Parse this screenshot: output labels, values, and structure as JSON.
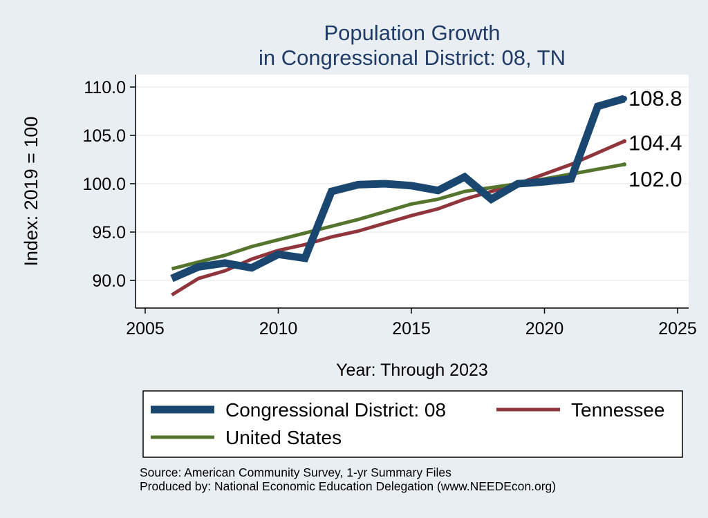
{
  "colors": {
    "background": "#e9eef3",
    "plot_background": "#ffffff",
    "title": "#1f3b66",
    "grid": "#e6e9ee",
    "axis": "#000000",
    "text": "#000000"
  },
  "chart_data": {
    "type": "line",
    "title": "Population Growth",
    "subtitle": "in Congressional District: 08, TN",
    "xlabel": "Year: Through 2023",
    "ylabel": "Index: 2019 = 100",
    "xlim": [
      2005,
      2025
    ],
    "ylim": [
      88.5,
      110.5
    ],
    "x_ticks": [
      2005,
      2010,
      2015,
      2020,
      2025
    ],
    "x_tick_labels": [
      "2005",
      "2010",
      "2015",
      "2020",
      "2025"
    ],
    "y_ticks": [
      90,
      95,
      100,
      105,
      110
    ],
    "y_tick_labels": [
      "90.0",
      "95.0",
      "100.0",
      "105.0",
      "110.0"
    ],
    "grid": true,
    "legend_position": "bottom",
    "x": [
      2006,
      2007,
      2008,
      2009,
      2010,
      2011,
      2012,
      2013,
      2014,
      2015,
      2016,
      2017,
      2018,
      2019,
      2020,
      2021,
      2022,
      2023
    ],
    "series": [
      {
        "name": "Congressional District: 08",
        "color": "#1a476f",
        "values": [
          90.2,
          91.4,
          91.8,
          91.3,
          92.7,
          92.3,
          99.2,
          99.9,
          100.0,
          99.8,
          99.3,
          100.7,
          98.4,
          100.0,
          100.2,
          100.5,
          108.0,
          108.8
        ],
        "end_label": "108.8"
      },
      {
        "name": "Tennessee",
        "color": "#90353b",
        "values": [
          88.5,
          90.2,
          91.0,
          92.2,
          93.1,
          93.7,
          94.5,
          95.1,
          95.9,
          96.7,
          97.4,
          98.4,
          99.2,
          100.0,
          101.0,
          102.0,
          103.2,
          104.4
        ],
        "end_label": "104.4"
      },
      {
        "name": "United States",
        "color": "#55752f",
        "values": [
          91.2,
          91.9,
          92.6,
          93.5,
          94.2,
          94.9,
          95.6,
          96.3,
          97.1,
          97.9,
          98.4,
          99.2,
          99.6,
          100.0,
          100.5,
          101.0,
          101.5,
          102.0
        ],
        "end_label": "102.0"
      }
    ]
  },
  "footer": {
    "source": "Source: American Community Survey, 1-yr Summary Files",
    "produced_by": "Produced by: National Economic Education Delegation (www.NEEDEcon.org)"
  }
}
